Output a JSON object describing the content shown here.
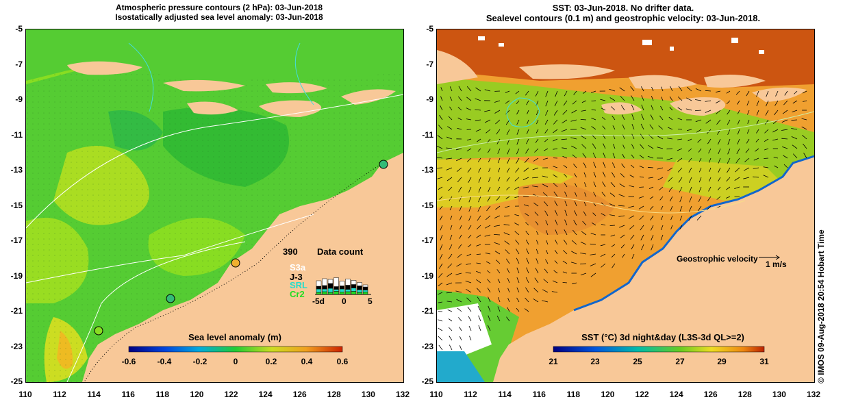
{
  "left_panel": {
    "title_line1": "Atmospheric pressure contours (2 hPa): 03-Jun-2018",
    "title_line2": "Isostatically adjusted sea level anomaly: 03-Jun-2018",
    "colorbar_label": "Sea level anomaly (m)",
    "colorbar_ticks": [
      "-0.6",
      "-0.4",
      "-0.2",
      "0",
      "0.2",
      "0.4",
      "0.6"
    ],
    "data_count": {
      "title": "Data count",
      "max_label": "390",
      "sources": [
        {
          "name": "S3a",
          "color": "#ffffff"
        },
        {
          "name": "J-3",
          "color": "#000000"
        },
        {
          "name": "SRL",
          "color": "#22ddcc"
        },
        {
          "name": "Cr2",
          "color": "#22dd22"
        }
      ],
      "axis_ticks": [
        "-5d",
        "0",
        "5"
      ]
    }
  },
  "right_panel": {
    "title_line1": "SST: 03-Jun-2018. No drifter data.",
    "title_line2": "Sealevel contours (0.1 m) and geostrophic velocity: 03-Jun-2018.",
    "colorbar_label": "SST (°C) 3d night&day (L3S-3d QL>=2)",
    "colorbar_ticks": [
      "21",
      "23",
      "25",
      "27",
      "29",
      "31"
    ],
    "velocity_legend": "Geostrophic velocity",
    "velocity_scale": "1 m/s"
  },
  "axes": {
    "y_ticks": [
      "-5",
      "-7",
      "-9",
      "-11",
      "-13",
      "-15",
      "-17",
      "-19",
      "-21",
      "-23",
      "-25"
    ],
    "x_ticks": [
      "110",
      "112",
      "114",
      "116",
      "118",
      "120",
      "122",
      "124",
      "126",
      "128",
      "130",
      "132"
    ],
    "lon_range": [
      110,
      132
    ],
    "lat_range": [
      -25,
      -5
    ]
  },
  "credit": "© IMOS 09-Aug-2018 20:54 Hobart Time",
  "colors": {
    "land": "#f8c898",
    "sla_ocean": "#55cc33",
    "sla_high": "#aadd22",
    "sst_ocean": "#f0a030",
    "sst_green": "#66cc33",
    "sst_hot": "#cc4400"
  }
}
